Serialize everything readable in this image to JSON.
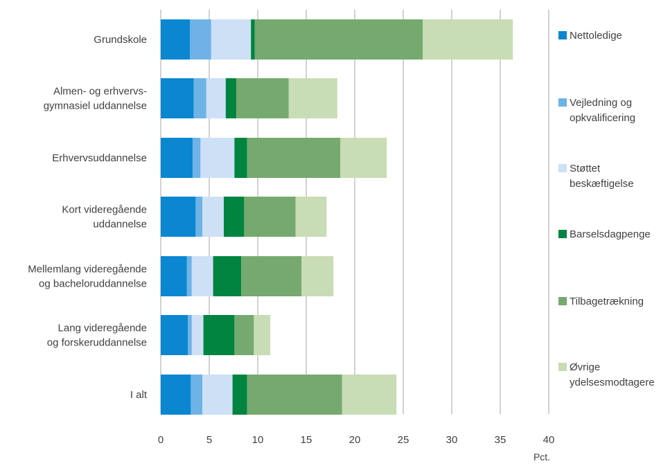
{
  "chart_data": {
    "type": "bar",
    "orientation": "horizontal",
    "stacked": true,
    "categories": [
      [
        "Grundskole"
      ],
      [
        "Almen- og erhvervs-",
        "gymnasiel uddannelse"
      ],
      [
        "Erhvervsuddannelse"
      ],
      [
        "Kort videregående",
        "uddannelse"
      ],
      [
        "Mellemlang videregående",
        "og bacheloruddannelse"
      ],
      [
        "Lang videregående",
        "og forskeruddannelse"
      ],
      [
        "I alt"
      ]
    ],
    "series": [
      {
        "name": [
          "Nettoledige"
        ],
        "color": "#0a87d0",
        "values": [
          3.0,
          3.4,
          3.3,
          3.6,
          2.7,
          2.8,
          3.1
        ]
      },
      {
        "name": [
          "Vejledning og",
          "opkvalificering"
        ],
        "color": "#6fb3e6",
        "values": [
          2.2,
          1.3,
          0.8,
          0.7,
          0.5,
          0.4,
          1.2
        ]
      },
      {
        "name": [
          "Støttet",
          "beskæftigelse"
        ],
        "color": "#cde0f6",
        "values": [
          4.1,
          2.0,
          3.5,
          2.2,
          2.2,
          1.2,
          3.1
        ]
      },
      {
        "name": [
          "Barselsdagpenge"
        ],
        "color": "#00843f",
        "values": [
          0.4,
          1.1,
          1.3,
          2.1,
          2.9,
          3.2,
          1.5
        ]
      },
      {
        "name": [
          "Tilbagetrækning"
        ],
        "color": "#76a96f",
        "values": [
          17.3,
          5.4,
          9.6,
          5.3,
          6.2,
          2.0,
          9.8
        ]
      },
      {
        "name": [
          "Øvrige",
          "ydelsesmodtagere"
        ],
        "color": "#c8dcb5",
        "values": [
          9.3,
          5.0,
          4.8,
          3.2,
          3.3,
          1.7,
          5.6
        ]
      }
    ],
    "xlim": [
      0,
      40
    ],
    "xticks": [
      0,
      5,
      10,
      15,
      20,
      25,
      30,
      35,
      40
    ],
    "xunit": "Pct.",
    "grid": true,
    "legend_position": "right"
  }
}
